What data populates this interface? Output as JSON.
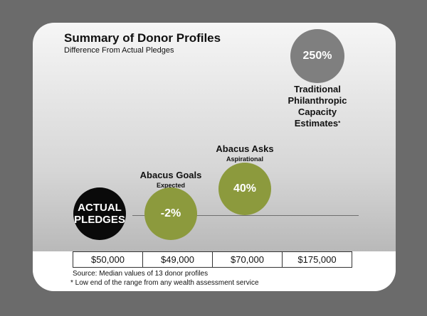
{
  "chart_data": {
    "type": "bubble",
    "title": "Summary of Donor Profiles",
    "subtitle": "Difference From Actual Pledges",
    "series": [
      {
        "name": "ACTUAL PLEDGES",
        "sublabel": "",
        "value_label": "",
        "amount": "$50,000",
        "color": "#0a0a0a"
      },
      {
        "name": "Abacus Goals",
        "sublabel": "Expected",
        "value_label": "-2%",
        "amount": "$49,000",
        "color": "#8c9a3d"
      },
      {
        "name": "Abacus Asks",
        "sublabel": "Aspirational",
        "value_label": "40%",
        "amount": "$70,000",
        "color": "#8c9a3d"
      },
      {
        "name": "Traditional Philanthropic Capacity Estimates",
        "sublabel": "",
        "value_label": "250%",
        "amount": "$175,000",
        "color": "#7f7f7f"
      }
    ],
    "values": [
      0,
      -2,
      40,
      250
    ],
    "amounts": [
      50000,
      49000,
      70000,
      175000
    ],
    "source": "Source: Median values of 13 donor profiles",
    "footnote": "* Low end of the range from any wealth assessment service"
  },
  "labels": {
    "actual_line1": "ACTUAL",
    "actual_line2": "PLEDGES",
    "trad_line1": "Traditional",
    "trad_line2": "Philanthropic Capacity",
    "trad_line3": "Estimates",
    "trad_star": "*"
  }
}
